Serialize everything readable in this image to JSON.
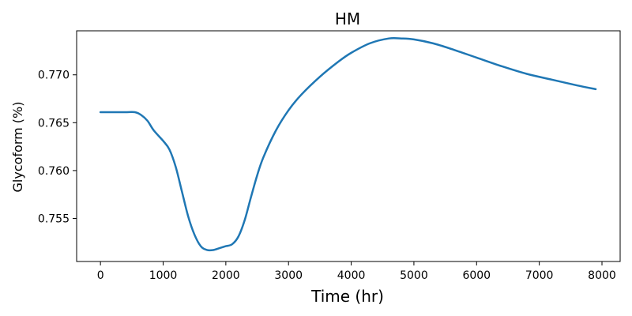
{
  "chart_data": {
    "type": "line",
    "title": "HM",
    "xlabel": "Time (hr)",
    "ylabel": "Glycoform (%)",
    "xlim": [
      -380,
      8290
    ],
    "ylim": [
      0.7505,
      0.7746
    ],
    "xticks": [
      0,
      1000,
      2000,
      3000,
      4000,
      5000,
      6000,
      7000,
      8000
    ],
    "xtick_labels": [
      "0",
      "1000",
      "2000",
      "3000",
      "4000",
      "5000",
      "6000",
      "7000",
      "8000"
    ],
    "yticks": [
      0.755,
      0.76,
      0.765,
      0.77
    ],
    "ytick_labels": [
      "0.755",
      "0.760",
      "0.765",
      "0.770"
    ],
    "grid": false,
    "series": [
      {
        "color": "#1f77b4",
        "x": [
          0,
          200,
          400,
          550,
          650,
          750,
          850,
          1000,
          1100,
          1200,
          1300,
          1400,
          1500,
          1600,
          1700,
          1800,
          1900,
          2000,
          2100,
          2200,
          2300,
          2400,
          2500,
          2600,
          2800,
          3000,
          3200,
          3500,
          3800,
          4000,
          4300,
          4600,
          4800,
          5000,
          5300,
          5600,
          6000,
          6400,
          6800,
          7200,
          7600,
          7900
        ],
        "y": [
          0.7661,
          0.7661,
          0.7661,
          0.7661,
          0.7658,
          0.7652,
          0.7642,
          0.7631,
          0.7622,
          0.7604,
          0.7578,
          0.7552,
          0.7533,
          0.7521,
          0.7517,
          0.7517,
          0.7519,
          0.7521,
          0.7523,
          0.7531,
          0.7548,
          0.7572,
          0.7595,
          0.7614,
          0.7642,
          0.7663,
          0.7679,
          0.7698,
          0.7714,
          0.7723,
          0.7733,
          0.7738,
          0.7738,
          0.7737,
          0.7733,
          0.7727,
          0.7718,
          0.7709,
          0.7701,
          0.7695,
          0.7689,
          0.7685
        ]
      }
    ]
  }
}
